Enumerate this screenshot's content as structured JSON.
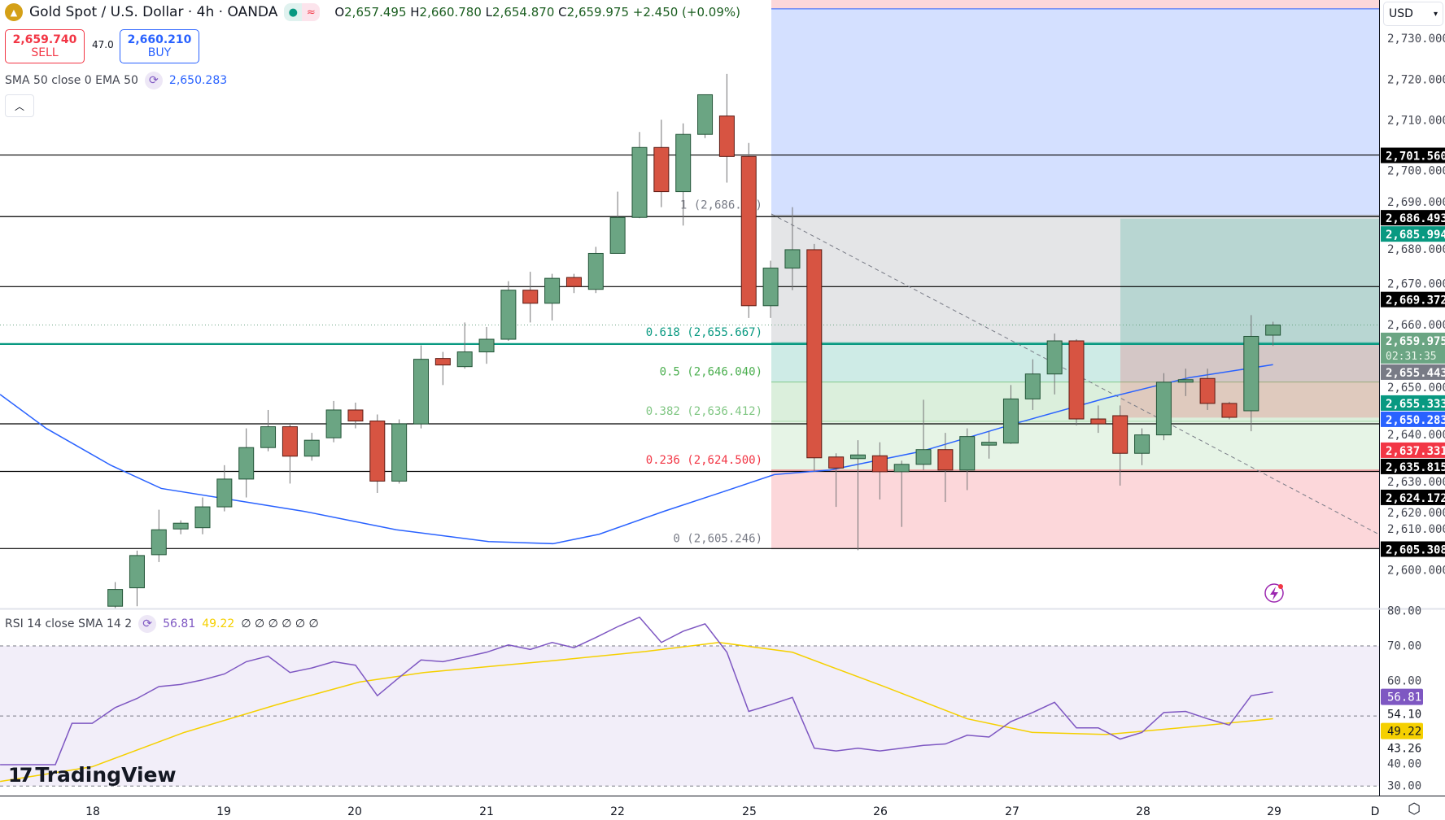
{
  "header": {
    "symbol_title": "Gold Spot / U.S. Dollar · 4h · OANDA",
    "ohlc": {
      "o_label": "O",
      "o": "2,657.495",
      "h_label": "H",
      "h": "2,660.780",
      "l_label": "L",
      "l": "2,654.870",
      "c_label": "C",
      "c": "2,659.975",
      "change": "+2.450 (+0.09%)"
    },
    "sell": {
      "price": "2,659.740",
      "label": "SELL"
    },
    "spread": "47.0",
    "buy": {
      "price": "2,660.210",
      "label": "BUY"
    },
    "currency": "USD",
    "collapse_icon": "chevron-up-icon"
  },
  "indicators": {
    "ma": {
      "label": "SMA 50 close 0 EMA 50",
      "value": "2,650.283",
      "color": "#2962ff"
    },
    "rsi": {
      "label": "RSI 14 close SMA 14 2",
      "rsi_value": "56.81",
      "sma_value": "49.22",
      "extra": "∅ ∅ ∅ ∅ ∅ ∅",
      "rsi_color": "#7e57c2",
      "sma_color": "#f5d000"
    }
  },
  "branding": "TradingView",
  "colors": {
    "up": "#6ba583",
    "down": "#d75442",
    "ema": "#2962ff",
    "teal": "#089981",
    "red": "#f23645"
  },
  "chart_data": {
    "type": "candlestick",
    "timeframe": "4h",
    "x_tick_labels": [
      "18",
      "19",
      "20",
      "21",
      "22",
      "25",
      "26",
      "27",
      "28",
      "29",
      "D"
    ],
    "candles_ohlc": [
      [
        2591.2,
        2597.1,
        2588.0,
        2595.3
      ],
      [
        2595.7,
        2604.8,
        2591.2,
        2603.6
      ],
      [
        2603.8,
        2614.8,
        2602.0,
        2609.9
      ],
      [
        2610.1,
        2612.2,
        2608.8,
        2611.5
      ],
      [
        2610.4,
        2617.8,
        2608.8,
        2615.5
      ],
      [
        2615.5,
        2625.7,
        2614.4,
        2622.3
      ],
      [
        2622.3,
        2634.7,
        2617.8,
        2630.0
      ],
      [
        2630.0,
        2639.2,
        2629.1,
        2635.1
      ],
      [
        2635.1,
        2635.8,
        2621.2,
        2627.9
      ],
      [
        2627.9,
        2633.6,
        2626.8,
        2631.8
      ],
      [
        2632.4,
        2641.4,
        2631.3,
        2639.2
      ],
      [
        2639.2,
        2641.0,
        2634.7,
        2636.5
      ],
      [
        2636.5,
        2638.1,
        2618.9,
        2621.8
      ],
      [
        2621.8,
        2636.9,
        2621.2,
        2635.8
      ],
      [
        2635.8,
        2655.0,
        2634.7,
        2651.6
      ],
      [
        2651.8,
        2653.4,
        2645.3,
        2650.2
      ],
      [
        2649.8,
        2660.6,
        2649.3,
        2653.4
      ],
      [
        2653.4,
        2659.5,
        2650.5,
        2656.5
      ],
      [
        2656.5,
        2670.7,
        2656.1,
        2668.5
      ],
      [
        2668.5,
        2673.0,
        2660.6,
        2665.3
      ],
      [
        2665.3,
        2672.5,
        2661.1,
        2671.4
      ],
      [
        2671.6,
        2672.5,
        2667.8,
        2669.4
      ],
      [
        2668.7,
        2679.1,
        2667.8,
        2677.5
      ],
      [
        2677.5,
        2692.6,
        2677.5,
        2686.3
      ],
      [
        2686.3,
        2707.2,
        2686.1,
        2703.4
      ],
      [
        2703.4,
        2710.2,
        2688.8,
        2692.6
      ],
      [
        2692.6,
        2709.3,
        2684.3,
        2706.6
      ],
      [
        2706.6,
        2716.3,
        2705.7,
        2716.3
      ],
      [
        2711.1,
        2721.4,
        2694.8,
        2701.2
      ],
      [
        2701.2,
        2704.5,
        2661.7,
        2664.7
      ],
      [
        2664.7,
        2675.7,
        2661.7,
        2673.9
      ],
      [
        2673.9,
        2688.8,
        2668.5,
        2678.4
      ],
      [
        2678.4,
        2679.8,
        2624.1,
        2627.5
      ],
      [
        2627.7,
        2628.6,
        2615.5,
        2625.0
      ],
      [
        2627.3,
        2631.8,
        2604.9,
        2628.2
      ],
      [
        2628.0,
        2631.3,
        2617.3,
        2624.1
      ],
      [
        2624.1,
        2626.8,
        2610.6,
        2625.9
      ],
      [
        2625.9,
        2641.7,
        2624.5,
        2629.5
      ],
      [
        2629.5,
        2633.6,
        2616.7,
        2624.5
      ],
      [
        2624.5,
        2634.7,
        2619.6,
        2632.7
      ],
      [
        2630.6,
        2634.0,
        2627.3,
        2631.3
      ],
      [
        2631.1,
        2645.3,
        2630.9,
        2641.9
      ],
      [
        2641.9,
        2651.6,
        2639.2,
        2648.0
      ],
      [
        2648.0,
        2657.9,
        2643.0,
        2656.1
      ],
      [
        2656.1,
        2656.5,
        2635.4,
        2637.0
      ],
      [
        2637.0,
        2640.3,
        2633.6,
        2635.8
      ],
      [
        2637.8,
        2640.3,
        2620.7,
        2628.6
      ],
      [
        2628.6,
        2634.7,
        2625.7,
        2633.1
      ],
      [
        2633.1,
        2648.2,
        2631.8,
        2646.0
      ],
      [
        2646.0,
        2649.3,
        2642.6,
        2646.6
      ],
      [
        2646.9,
        2649.3,
        2639.2,
        2640.8
      ],
      [
        2640.8,
        2641.2,
        2636.9,
        2637.4
      ],
      [
        2639.0,
        2662.4,
        2634.0,
        2657.2
      ],
      [
        2657.495,
        2660.78,
        2654.87,
        2659.975
      ]
    ],
    "ema50_by_bar": [
      [
        -5.27,
        2643.0
      ],
      [
        -3.16,
        2634.7
      ],
      [
        -0.21,
        2625.7
      ],
      [
        2.11,
        2620.0
      ],
      [
        5.27,
        2617.3
      ],
      [
        8.65,
        2614.4
      ],
      [
        12.87,
        2609.9
      ],
      [
        17.09,
        2607.0
      ],
      [
        20.04,
        2606.5
      ],
      [
        22.15,
        2608.8
      ],
      [
        25.11,
        2614.4
      ],
      [
        28.06,
        2619.6
      ],
      [
        30.17,
        2623.4
      ],
      [
        32.7,
        2624.5
      ],
      [
        36.92,
        2629.1
      ],
      [
        41.14,
        2635.8
      ],
      [
        45.36,
        2642.1
      ],
      [
        49.16,
        2647.1
      ],
      [
        53.0,
        2650.283
      ]
    ],
    "price_axis": {
      "ylim": [
        2600,
        2730
      ],
      "ticks": [
        "2,730.000",
        "2,720.000",
        "2,710.000",
        "2,700.000",
        "2,690.000",
        "2,680.000",
        "2,670.000",
        "2,660.000",
        "2,650.000",
        "2,640.000",
        "2,630.000",
        "2,620.000",
        "2,610.000",
        "2,600.000"
      ]
    },
    "horizontal_levels": [
      2701.56,
      2686.493,
      2669.372,
      2635.815,
      2624.172,
      2605.308
    ],
    "support_line": 2655.333,
    "current_price": 2659.975,
    "fibonacci": [
      {
        "label": "1 (2,686.8…)",
        "price": 2686.85,
        "color": "#787b86"
      },
      {
        "label": "0.618 (2,655.667)",
        "price": 2655.667,
        "color": "#089981"
      },
      {
        "label": "0.5 (2,646.040)",
        "price": 2646.04,
        "color": "#4caf50"
      },
      {
        "label": "0.382 (2,636.412)",
        "price": 2636.412,
        "color": "#81c784"
      },
      {
        "label": "0.236 (2,624.500)",
        "price": 2624.5,
        "color": "#f23645"
      },
      {
        "label": "0 (2,605.246)",
        "price": 2605.246,
        "color": "#787b86"
      }
    ],
    "fib_top_level": 2737.3,
    "long_position": {
      "target": 2685.994,
      "entry": 2655.443,
      "stop": 2637.331
    },
    "price_tags": [
      {
        "text": "2,701.560",
        "color": "#000000"
      },
      {
        "text": "2,686.493",
        "color": "#000000"
      },
      {
        "text": "2,685.994",
        "color": "#089981"
      },
      {
        "text": "2,669.372",
        "color": "#000000"
      },
      {
        "text": "2,659.975",
        "sub": "02:31:35",
        "color": "#6ba583"
      },
      {
        "text": "2,655.443",
        "color": "#787b86"
      },
      {
        "text": "2,655.333",
        "color": "#089981"
      },
      {
        "text": "2,650.283",
        "color": "#2962ff"
      },
      {
        "text": "2,637.331",
        "color": "#f23645"
      },
      {
        "text": "2,635.815",
        "color": "#000000"
      },
      {
        "text": "2,624.172",
        "color": "#000000"
      },
      {
        "text": "2,605.308",
        "color": "#000000"
      }
    ],
    "rsi": {
      "ylim": [
        30,
        80
      ],
      "levels": [
        70,
        50,
        30
      ],
      "ticks": [
        "80.00",
        "70.00",
        "60.00",
        "40.00",
        "30.00"
      ],
      "tags": [
        {
          "text": "56.81",
          "color": "#7e57c2"
        },
        {
          "text": "54.10",
          "color": ""
        },
        {
          "text": "49.22",
          "color": "#f5d000"
        },
        {
          "text": "43.26",
          "color": ""
        }
      ],
      "rsi_by_bar": [
        [
          -5.27,
          36.1
        ],
        [
          -2.74,
          36.1
        ],
        [
          -1.98,
          47.9
        ],
        [
          -1.05,
          47.9
        ],
        [
          0,
          52.4
        ],
        [
          1,
          55
        ],
        [
          2,
          58.4
        ],
        [
          3,
          59
        ],
        [
          4,
          60.3
        ],
        [
          5,
          62
        ],
        [
          6,
          65.5
        ],
        [
          7,
          67.1
        ],
        [
          8,
          62.4
        ],
        [
          9,
          63.7
        ],
        [
          10,
          65.5
        ],
        [
          11,
          64.5
        ],
        [
          12,
          55.8
        ],
        [
          13,
          61
        ],
        [
          14,
          66
        ],
        [
          15,
          65.5
        ],
        [
          16,
          66.8
        ],
        [
          17,
          68.2
        ],
        [
          18,
          70.3
        ],
        [
          19,
          69
        ],
        [
          20,
          71
        ],
        [
          21,
          69.5
        ],
        [
          22,
          72.4
        ],
        [
          23,
          75.5
        ],
        [
          24,
          78.2
        ],
        [
          25,
          71
        ],
        [
          26,
          74.2
        ],
        [
          27,
          76.3
        ],
        [
          28,
          68.2
        ],
        [
          29,
          51.3
        ],
        [
          30,
          53.2
        ],
        [
          31,
          55.3
        ],
        [
          32,
          40.8
        ],
        [
          33,
          40
        ],
        [
          34,
          40.8
        ],
        [
          35,
          40
        ],
        [
          36,
          40.8
        ],
        [
          37,
          41.6
        ],
        [
          38,
          42
        ],
        [
          39,
          44.5
        ],
        [
          40,
          44
        ],
        [
          41,
          48.4
        ],
        [
          42,
          51
        ],
        [
          43,
          53.9
        ],
        [
          44,
          46.6
        ],
        [
          45,
          46.6
        ],
        [
          46,
          43.4
        ],
        [
          47,
          45.3
        ],
        [
          48,
          51
        ],
        [
          49,
          51.3
        ],
        [
          50,
          49.2
        ],
        [
          51,
          47.4
        ],
        [
          52,
          55.8
        ],
        [
          53,
          56.81
        ]
      ],
      "sma_by_bar": [
        [
          -5.27,
          31.3
        ],
        [
          -1.05,
          35.5
        ],
        [
          3.16,
          45.3
        ],
        [
          7.38,
          53.2
        ],
        [
          11.18,
          59.7
        ],
        [
          14.13,
          62.4
        ],
        [
          20.04,
          65.8
        ],
        [
          24.26,
          68.4
        ],
        [
          27.64,
          71
        ],
        [
          31.0,
          68.2
        ],
        [
          35.2,
          58.4
        ],
        [
          39.0,
          49.2
        ],
        [
          41.98,
          45.3
        ],
        [
          45.36,
          44.7
        ],
        [
          48.73,
          46.6
        ],
        [
          53.0,
          49.22
        ]
      ]
    }
  }
}
